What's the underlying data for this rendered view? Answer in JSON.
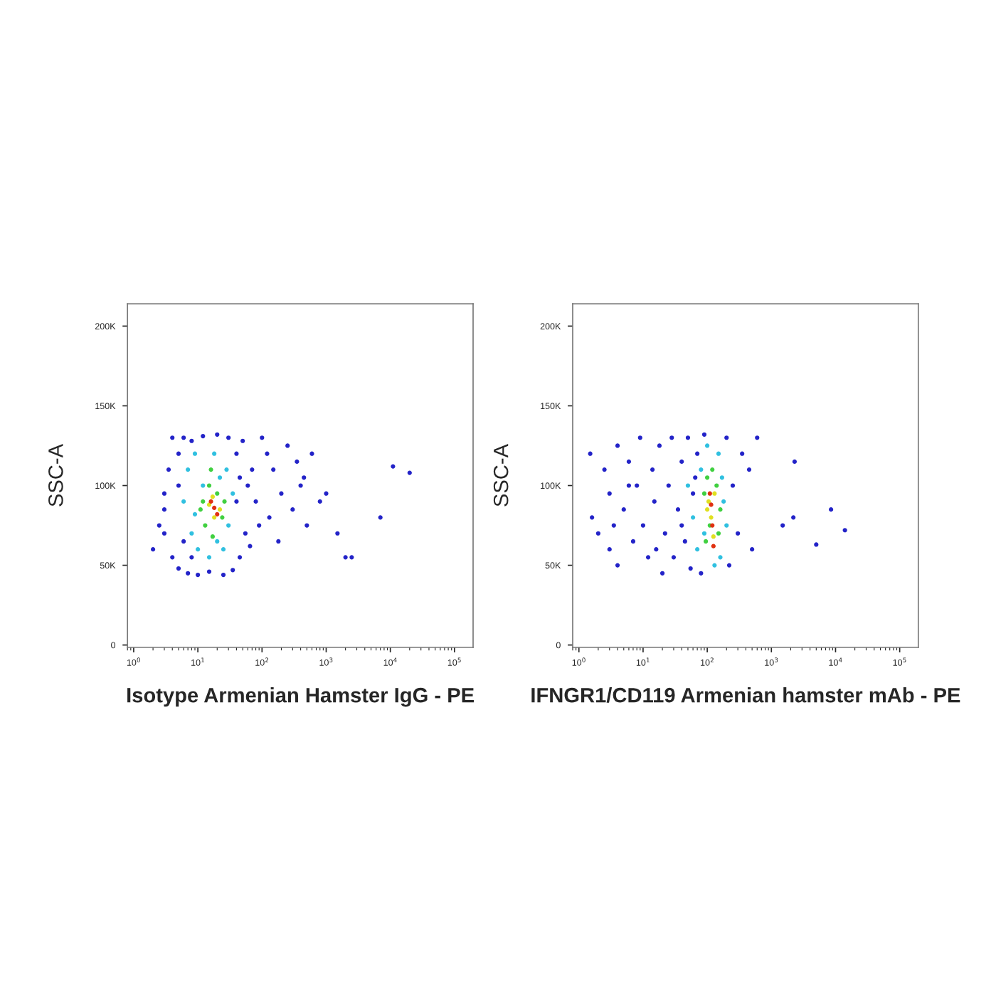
{
  "chart_data": [
    {
      "type": "scatter",
      "xlabel": "Isotype Armenian Hamster IgG - PE",
      "ylabel": "SSC-A",
      "log": "x",
      "marker": "circle",
      "grid": false,
      "legend": false,
      "xlim": [
        0.8,
        195000
      ],
      "ylim": [
        -1500,
        214000
      ],
      "xticks": [
        {
          "value": 1,
          "label": "10$^{0}$"
        },
        {
          "value": 10,
          "label": "10$^{1}$"
        },
        {
          "value": 100,
          "label": "10$^{2}$"
        },
        {
          "value": 1000,
          "label": "10$^{3}$"
        },
        {
          "value": 10000,
          "label": "10$^{4}$"
        },
        {
          "value": 100000,
          "label": "10$^{5}$"
        }
      ],
      "yticks": [
        0,
        {
          "value": 50000,
          "label": "50K"
        },
        {
          "value": 100000,
          "label": "100K"
        },
        {
          "value": 150000,
          "label": "150K"
        },
        {
          "value": 200000,
          "label": "200K"
        }
      ],
      "series": [
        {
          "color": "#2323c8",
          "x": [
            2,
            2.5,
            3,
            3.5,
            4,
            4,
            5,
            5,
            6,
            7,
            8,
            10,
            12,
            15,
            20,
            25,
            30,
            35,
            40,
            45,
            50,
            55,
            60,
            65,
            70,
            80,
            90,
            100,
            120,
            150,
            200,
            250,
            300,
            350,
            400,
            500,
            600,
            800,
            1000,
            1500,
            2000,
            2500,
            7000,
            11000,
            20000,
            3,
            3,
            5,
            6,
            8,
            40,
            45,
            130,
            180,
            450
          ],
          "values": [
            60000,
            75000,
            95000,
            110000,
            130000,
            55000,
            120000,
            48000,
            130000,
            45000,
            128000,
            44000,
            131000,
            46000,
            132000,
            44000,
            130000,
            47000,
            120000,
            55000,
            128000,
            70000,
            100000,
            62000,
            110000,
            90000,
            75000,
            130000,
            120000,
            110000,
            95000,
            125000,
            85000,
            115000,
            100000,
            75000,
            120000,
            90000,
            95000,
            70000,
            55000,
            55000,
            80000,
            112000,
            108000,
            70000,
            85000,
            100000,
            65000,
            55000,
            90000,
            105000,
            80000,
            65000,
            105000
          ]
        },
        {
          "color": "#30c0e0",
          "x": [
            6,
            7,
            8,
            9,
            10,
            12,
            15,
            18,
            25,
            28,
            30,
            35,
            9,
            20,
            22
          ],
          "values": [
            90000,
            110000,
            70000,
            120000,
            60000,
            100000,
            55000,
            120000,
            60000,
            110000,
            75000,
            95000,
            82000,
            65000,
            105000
          ]
        },
        {
          "color": "#40d040",
          "x": [
            12,
            13,
            15,
            17,
            20,
            24,
            26,
            11,
            16
          ],
          "values": [
            90000,
            75000,
            100000,
            68000,
            95000,
            80000,
            90000,
            85000,
            110000
          ]
        },
        {
          "color": "#e0e020",
          "x": [
            15,
            18,
            22,
            17
          ],
          "values": [
            88000,
            80000,
            85000,
            93000
          ]
        },
        {
          "color": "#e03010",
          "x": [
            18,
            20,
            16
          ],
          "values": [
            86000,
            82000,
            90000
          ]
        }
      ]
    },
    {
      "type": "scatter",
      "xlabel": "IFNGR1/CD119 Armenian hamster mAb - PE",
      "ylabel": "SSC-A",
      "log": "x",
      "marker": "circle",
      "grid": false,
      "legend": false,
      "xlim": [
        0.8,
        195000
      ],
      "ylim": [
        -1500,
        214000
      ],
      "xticks": [
        {
          "value": 1,
          "label": "10$^{0}$"
        },
        {
          "value": 10,
          "label": "10$^{1}$"
        },
        {
          "value": 100,
          "label": "10$^{2}$"
        },
        {
          "value": 1000,
          "label": "10$^{3}$"
        },
        {
          "value": 10000,
          "label": "10$^{4}$"
        },
        {
          "value": 100000,
          "label": "10$^{5}$"
        }
      ],
      "yticks": [
        0,
        {
          "value": 50000,
          "label": "50K"
        },
        {
          "value": 100000,
          "label": "100K"
        },
        {
          "value": 150000,
          "label": "150K"
        },
        {
          "value": 200000,
          "label": "200K"
        }
      ],
      "series": [
        {
          "color": "#2323c8",
          "x": [
            1.5,
            1.6,
            2,
            2.5,
            3,
            3,
            4,
            4,
            5,
            6,
            7,
            8,
            9,
            10,
            12,
            14,
            15,
            18,
            20,
            22,
            25,
            28,
            30,
            35,
            40,
            45,
            50,
            55,
            60,
            70,
            80,
            90,
            200,
            220,
            250,
            300,
            350,
            450,
            500,
            600,
            1500,
            2200,
            2300,
            5000,
            8500,
            14000,
            3.5,
            6,
            16,
            40,
            65
          ],
          "values": [
            120000,
            80000,
            70000,
            110000,
            60000,
            95000,
            125000,
            50000,
            85000,
            115000,
            65000,
            100000,
            130000,
            75000,
            55000,
            110000,
            90000,
            125000,
            45000,
            70000,
            100000,
            130000,
            55000,
            85000,
            115000,
            65000,
            130000,
            48000,
            95000,
            120000,
            45000,
            132000,
            130000,
            50000,
            100000,
            70000,
            120000,
            110000,
            60000,
            130000,
            75000,
            80000,
            115000,
            63000,
            85000,
            72000,
            75000,
            100000,
            60000,
            75000,
            105000
          ]
        },
        {
          "color": "#30c0e0",
          "x": [
            60,
            70,
            80,
            90,
            150,
            160,
            180,
            200,
            100,
            130,
            50,
            170
          ],
          "values": [
            80000,
            60000,
            110000,
            70000,
            120000,
            55000,
            90000,
            75000,
            125000,
            50000,
            100000,
            105000
          ]
        },
        {
          "color": "#40d040",
          "x": [
            90,
            95,
            100,
            110,
            140,
            150,
            160,
            120
          ],
          "values": [
            95000,
            65000,
            105000,
            75000,
            100000,
            70000,
            85000,
            110000
          ]
        },
        {
          "color": "#e0e020",
          "x": [
            105,
            115,
            130,
            125,
            100
          ],
          "values": [
            90000,
            80000,
            95000,
            68000,
            85000
          ]
        },
        {
          "color": "#e03010",
          "x": [
            115,
            120,
            110,
            125
          ],
          "values": [
            88000,
            75000,
            95000,
            62000
          ]
        }
      ]
    }
  ]
}
